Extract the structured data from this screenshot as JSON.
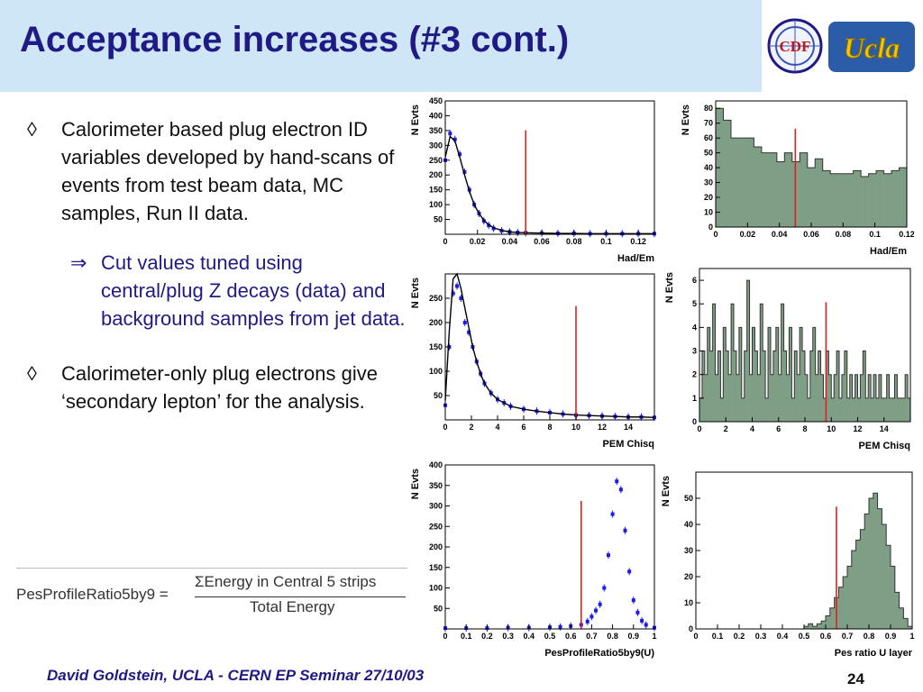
{
  "title": "Acceptance increases (#3 cont.)",
  "logos": {
    "cdf": "CDF",
    "ucla": "UCLA"
  },
  "bullets": [
    {
      "marker": "◊",
      "text": "Calorimeter based plug electron ID variables developed by hand-scans of events from test beam data, MC samples, Run II data."
    },
    {
      "marker": "⇒",
      "text": "Cut values tuned using central/plug Z decays (data) and background samples from jet data."
    },
    {
      "marker": "◊",
      "text": "Calorimeter-only plug electrons give ‘secondary lepton’ for the analysis."
    }
  ],
  "formula": {
    "lhs": "PesProfileRatio5by9 =",
    "numerator": "ΣEnergy in Central 5 strips",
    "denominator": "Total Energy"
  },
  "footer": {
    "text": "David Goldstein, UCLA - CERN EP Seminar 27/10/03",
    "page": "24"
  },
  "colors": {
    "title": "#1f1a85",
    "header_band": "#cfe6f7",
    "data_points": "#1a1aee",
    "cut_line": "#e02020",
    "hist_fill": "#7f9e86"
  },
  "chart_data": [
    {
      "type": "line",
      "ylabel": "N Evts",
      "xlabel": "Had/Em",
      "xlim": [
        0,
        0.13
      ],
      "ylim": [
        0,
        450
      ],
      "xticks": [
        "0",
        "0.02",
        "0.04",
        "0.06",
        "0.08",
        "0.1",
        "0.12"
      ],
      "xtick_values": [
        0,
        0.02,
        0.04,
        0.06,
        0.08,
        0.1,
        0.12
      ],
      "yticks": [
        "50",
        "100",
        "150",
        "200",
        "250",
        "300",
        "350",
        "400",
        "450"
      ],
      "ytick_values": [
        50,
        100,
        150,
        200,
        250,
        300,
        350,
        400,
        450
      ],
      "x": [
        0,
        0.003,
        0.006,
        0.009,
        0.012,
        0.015,
        0.018,
        0.021,
        0.024,
        0.027,
        0.03,
        0.035,
        0.04,
        0.045,
        0.05,
        0.06,
        0.07,
        0.08,
        0.09,
        0.1,
        0.11,
        0.12,
        0.13
      ],
      "series": [
        {
          "style": "points",
          "values": [
            250,
            340,
            320,
            270,
            210,
            150,
            100,
            70,
            45,
            30,
            20,
            12,
            8,
            6,
            5,
            4,
            3,
            3,
            2,
            2,
            2,
            2,
            2
          ]
        },
        {
          "style": "line",
          "values": [
            260,
            330,
            315,
            260,
            200,
            145,
            100,
            70,
            47,
            32,
            22,
            13,
            8,
            6,
            5,
            4,
            3,
            3,
            2,
            2,
            2,
            2,
            2
          ]
        }
      ],
      "cut": 0.05
    },
    {
      "type": "bar",
      "ylabel": "N Evts",
      "xlabel": "Had/Em",
      "xlim": [
        0,
        0.12
      ],
      "ylim": [
        0,
        85
      ],
      "xticks": [
        "0",
        "0.02",
        "0.04",
        "0.06",
        "0.08",
        "0.1",
        "0.12"
      ],
      "xtick_values": [
        0,
        0.02,
        0.04,
        0.06,
        0.08,
        0.1,
        0.12
      ],
      "yticks": [
        "0",
        "10",
        "20",
        "30",
        "40",
        "50",
        "60",
        "70",
        "80"
      ],
      "ytick_values": [
        0,
        10,
        20,
        30,
        40,
        50,
        60,
        70,
        80
      ],
      "values": [
        80,
        72,
        60,
        60,
        60,
        54,
        50,
        50,
        44,
        50,
        44,
        50,
        40,
        46,
        38,
        36,
        36,
        36,
        38,
        34,
        36,
        38,
        36,
        38,
        40
      ],
      "cut": 0.05
    },
    {
      "type": "line",
      "ylabel": "N Evts",
      "xlabel": "PEM Chisq",
      "xlim": [
        0,
        16
      ],
      "ylim": [
        0,
        300
      ],
      "xticks": [
        "0",
        "2",
        "4",
        "6",
        "8",
        "10",
        "12",
        "14"
      ],
      "xtick_values": [
        0,
        2,
        4,
        6,
        8,
        10,
        12,
        14
      ],
      "yticks": [
        "50",
        "100",
        "150",
        "200",
        "250"
      ],
      "ytick_values": [
        50,
        100,
        150,
        200,
        250
      ],
      "x": [
        0,
        0.3,
        0.6,
        0.9,
        1.2,
        1.5,
        1.8,
        2.1,
        2.4,
        2.7,
        3,
        3.5,
        4,
        4.5,
        5,
        6,
        7,
        8,
        9,
        10,
        11,
        12,
        13,
        14,
        15,
        16
      ],
      "series": [
        {
          "style": "points",
          "values": [
            30,
            150,
            260,
            275,
            250,
            200,
            180,
            150,
            120,
            95,
            75,
            55,
            42,
            35,
            28,
            22,
            18,
            15,
            12,
            10,
            9,
            8,
            7,
            6,
            6,
            5
          ]
        },
        {
          "style": "line",
          "values": [
            40,
            180,
            290,
            300,
            270,
            230,
            190,
            150,
            120,
            95,
            75,
            55,
            42,
            35,
            28,
            22,
            18,
            15,
            12,
            10,
            9,
            8,
            7,
            6,
            6,
            5
          ]
        }
      ],
      "cut": 10
    },
    {
      "type": "bar",
      "ylabel": "N Evts",
      "xlabel": "PEM Chisq",
      "xlim": [
        0,
        16
      ],
      "ylim": [
        0,
        6.5
      ],
      "xticks": [
        "0",
        "2",
        "4",
        "6",
        "8",
        "10",
        "12",
        "14"
      ],
      "xtick_values": [
        0,
        2,
        4,
        6,
        8,
        10,
        12,
        14
      ],
      "yticks": [
        "0",
        "1",
        "2",
        "3",
        "4",
        "5",
        "6"
      ],
      "ytick_values": [
        0,
        1,
        2,
        3,
        4,
        5,
        6
      ],
      "values": [
        1,
        3,
        2,
        4,
        3,
        5,
        2,
        3,
        1,
        4,
        3,
        2,
        5,
        3,
        2,
        4,
        1,
        3,
        6,
        2,
        4,
        3,
        2,
        5,
        3,
        1,
        4,
        2,
        3,
        4,
        2,
        5,
        3,
        2,
        4,
        1,
        3,
        2,
        4,
        3,
        2,
        1,
        3,
        4,
        2,
        3,
        2,
        1,
        3,
        2,
        1,
        2,
        3,
        1,
        2,
        3,
        1,
        2,
        1,
        2,
        1,
        2,
        3,
        1,
        2,
        1,
        2,
        1,
        2,
        1,
        1,
        2,
        1,
        1,
        2,
        1,
        1,
        1,
        2,
        1
      ],
      "cut": 9.6
    },
    {
      "type": "line",
      "ylabel": "N Evts",
      "xlabel": "PesProfileRatio5by9(U)",
      "xlim": [
        0,
        1
      ],
      "ylim": [
        0,
        400
      ],
      "xticks": [
        "0",
        "0.1",
        "0.2",
        "0.3",
        "0.4",
        "0.5",
        "0.6",
        "0.7",
        "0.8",
        "0.9",
        "1"
      ],
      "xtick_values": [
        0,
        0.1,
        0.2,
        0.3,
        0.4,
        0.5,
        0.6,
        0.7,
        0.8,
        0.9,
        1
      ],
      "yticks": [
        "50",
        "100",
        "150",
        "200",
        "250",
        "300",
        "350",
        "400"
      ],
      "ytick_values": [
        50,
        100,
        150,
        200,
        250,
        300,
        350,
        400
      ],
      "x": [
        0,
        0.1,
        0.2,
        0.3,
        0.4,
        0.5,
        0.55,
        0.6,
        0.65,
        0.68,
        0.7,
        0.72,
        0.74,
        0.76,
        0.78,
        0.8,
        0.82,
        0.84,
        0.86,
        0.88,
        0.9,
        0.92,
        0.94,
        0.96,
        1
      ],
      "series": [
        {
          "style": "points",
          "values": [
            2,
            2,
            2,
            3,
            3,
            4,
            5,
            7,
            10,
            18,
            30,
            45,
            60,
            100,
            180,
            280,
            360,
            340,
            240,
            140,
            70,
            40,
            20,
            10,
            3
          ]
        }
      ],
      "cut": 0.65
    },
    {
      "type": "bar",
      "ylabel": "N Evts",
      "xlabel": "Pes ratio U layer",
      "xlim": [
        0,
        1
      ],
      "ylim": [
        0,
        60
      ],
      "xticks": [
        "0",
        "0.1",
        "0.2",
        "0.3",
        "0.4",
        "0.5",
        "0.6",
        "0.7",
        "0.8",
        "0.9",
        "1"
      ],
      "xtick_values": [
        0,
        0.1,
        0.2,
        0.3,
        0.4,
        0.5,
        0.6,
        0.7,
        0.8,
        0.9,
        1
      ],
      "yticks": [
        "0",
        "10",
        "20",
        "30",
        "40",
        "50"
      ],
      "ytick_values": [
        0,
        10,
        20,
        30,
        40,
        50
      ],
      "values": [
        0,
        0,
        0,
        0,
        0,
        0,
        0,
        0,
        0,
        0,
        0,
        0,
        0,
        0,
        0,
        0,
        0,
        0,
        0,
        0,
        0,
        0,
        0,
        0,
        0,
        1,
        2,
        1,
        2,
        3,
        5,
        8,
        12,
        16,
        20,
        24,
        30,
        34,
        38,
        44,
        50,
        52,
        46,
        40,
        32,
        24,
        14,
        8,
        4,
        1
      ],
      "cut": 0.65
    }
  ]
}
